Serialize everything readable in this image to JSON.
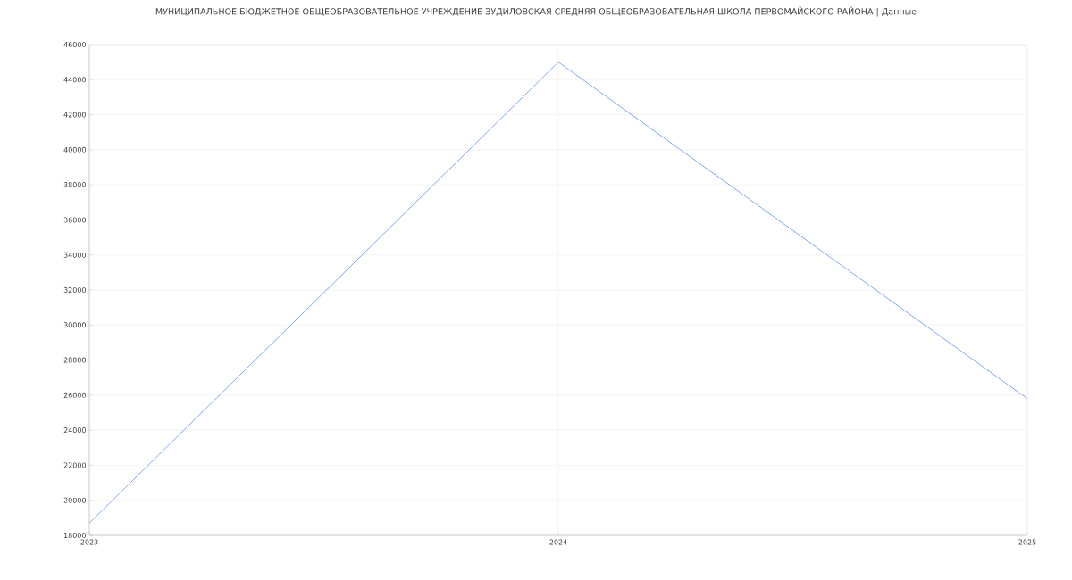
{
  "chart_data": {
    "type": "line",
    "title": "МУНИЦИПАЛЬНОЕ БЮДЖЕТНОЕ ОБЩЕОБРАЗОВАТЕЛЬНОЕ УЧРЕЖДЕНИЕ ЗУДИЛОВСКАЯ СРЕДНЯЯ ОБЩЕОБРАЗОВАТЕЛЬНАЯ ШКОЛА ПЕРВОМАЙСКОГО РАЙОНА | Данные",
    "x": [
      2023,
      2024,
      2025
    ],
    "series": [
      {
        "color": "#6d9cf2",
        "values": [
          18700,
          45000,
          25800
        ]
      }
    ],
    "xlim": [
      2023,
      2025
    ],
    "xticks": [
      2023,
      2024,
      2025
    ],
    "ylim": [
      18000,
      46000
    ],
    "yticks": [
      18000,
      20000,
      22000,
      24000,
      26000,
      28000,
      30000,
      32000,
      34000,
      36000,
      38000,
      40000,
      42000,
      44000,
      46000
    ],
    "grid": true,
    "marker": "none",
    "line_style": "solid"
  }
}
